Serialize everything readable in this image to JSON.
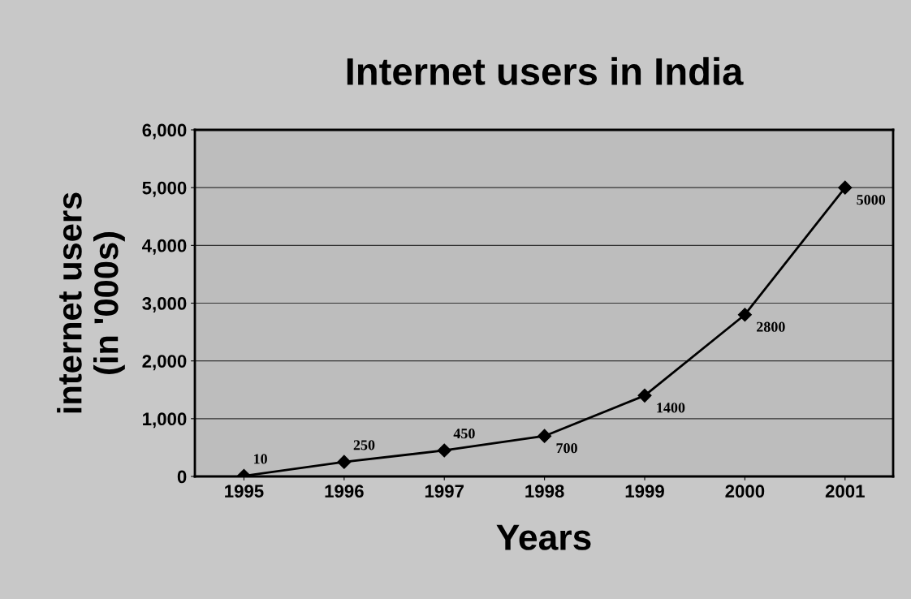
{
  "chart_data": {
    "type": "line",
    "title": "Internet users in India",
    "xlabel": "Years",
    "ylabel": "internet users\n(in '000s)",
    "categories": [
      "1995",
      "1996",
      "1997",
      "1998",
      "1999",
      "2000",
      "2001"
    ],
    "series": [
      {
        "color": "#000000",
        "values": [
          10,
          250,
          450,
          700,
          1400,
          2800,
          5000
        ]
      }
    ],
    "ylim": [
      0,
      6000
    ],
    "yticks": [
      {
        "value": 0,
        "label": "0"
      },
      {
        "value": 1000,
        "label": "1,000"
      },
      {
        "value": 2000,
        "label": "2,000"
      },
      {
        "value": 3000,
        "label": "3,000"
      },
      {
        "value": 4000,
        "label": "4,000"
      },
      {
        "value": 5000,
        "label": "5,000"
      },
      {
        "value": 6000,
        "label": "6,000"
      }
    ],
    "grid": "y",
    "marker": "diamond",
    "line_style": "solid",
    "data_labels": true
  }
}
